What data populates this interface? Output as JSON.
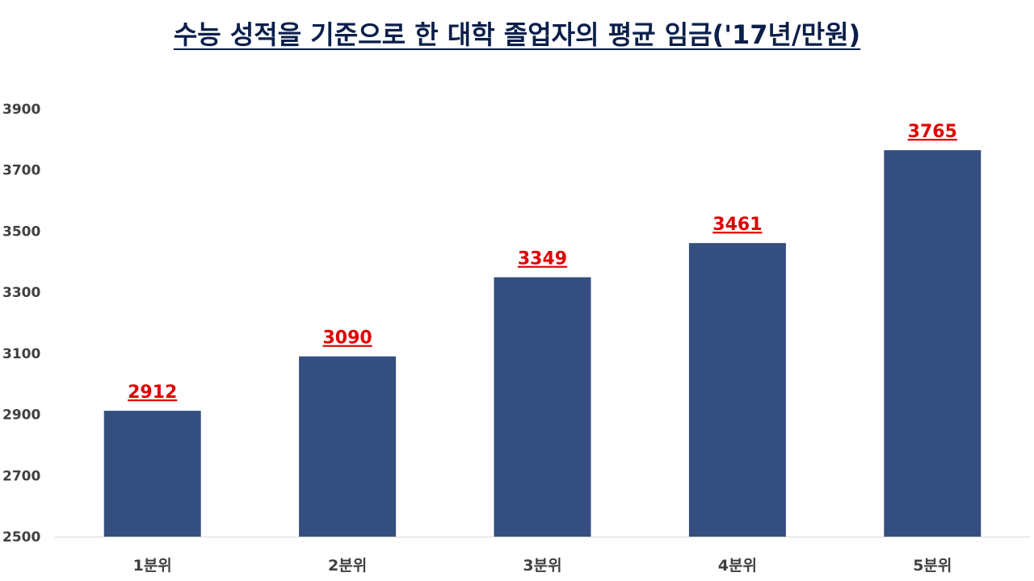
{
  "chart_data": {
    "type": "bar",
    "title": "수능 성적을 기준으로 한 대학 졸업자의 평균 임금('17년/만원)",
    "xlabel": "",
    "ylabel": "",
    "categories": [
      "1분위",
      "2분위",
      "3분위",
      "4분위",
      "5분위"
    ],
    "values": [
      2912,
      3090,
      3349,
      3461,
      3765
    ],
    "y_ticks": [
      "2500",
      "2700",
      "2900",
      "3100",
      "3300",
      "3500",
      "3700",
      "3900"
    ],
    "ylim": [
      2500,
      3900
    ],
    "grid": false,
    "legend": "none",
    "colors": {
      "bar": "#344e7f",
      "data_label": "#e00000",
      "title": "#0b1f4a",
      "axis": "#d9d9d9"
    }
  }
}
